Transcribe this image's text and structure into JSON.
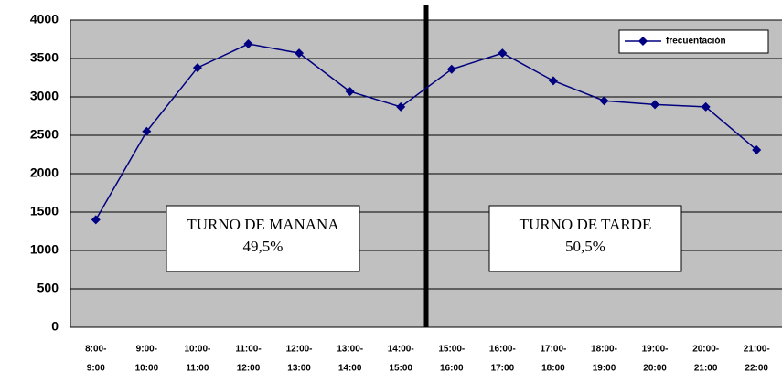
{
  "chart_data": {
    "type": "line",
    "categories": [
      [
        "8:00-",
        "9:00"
      ],
      [
        "9:00-",
        "10:00"
      ],
      [
        "10:00-",
        "11:00"
      ],
      [
        "11:00-",
        "12:00"
      ],
      [
        "12:00-",
        "13:00"
      ],
      [
        "13:00-",
        "14:00"
      ],
      [
        "14:00-",
        "15:00"
      ],
      [
        "15:00-",
        "16:00"
      ],
      [
        "16:00-",
        "17:00"
      ],
      [
        "17:00-",
        "18:00"
      ],
      [
        "18:00-",
        "19:00"
      ],
      [
        "19:00-",
        "20:00"
      ],
      [
        "20:00-",
        "21:00"
      ],
      [
        "21:00-",
        "22:00"
      ]
    ],
    "series": [
      {
        "name": "frecuentación",
        "color": "#000080",
        "values": [
          1400,
          2550,
          3380,
          3690,
          3570,
          3070,
          2870,
          3360,
          3570,
          3210,
          2950,
          2900,
          2870,
          2310
        ]
      }
    ],
    "ylim": [
      0,
      4000
    ],
    "yticks": [
      0,
      500,
      1000,
      1500,
      2000,
      2500,
      3000,
      3500,
      4000
    ],
    "grid": true,
    "legend": "top-right",
    "annotations": [
      [
        "TURNO DE MANANA",
        "49,5%"
      ],
      [
        "TURNO DE TARDE",
        "50,5%"
      ]
    ]
  }
}
